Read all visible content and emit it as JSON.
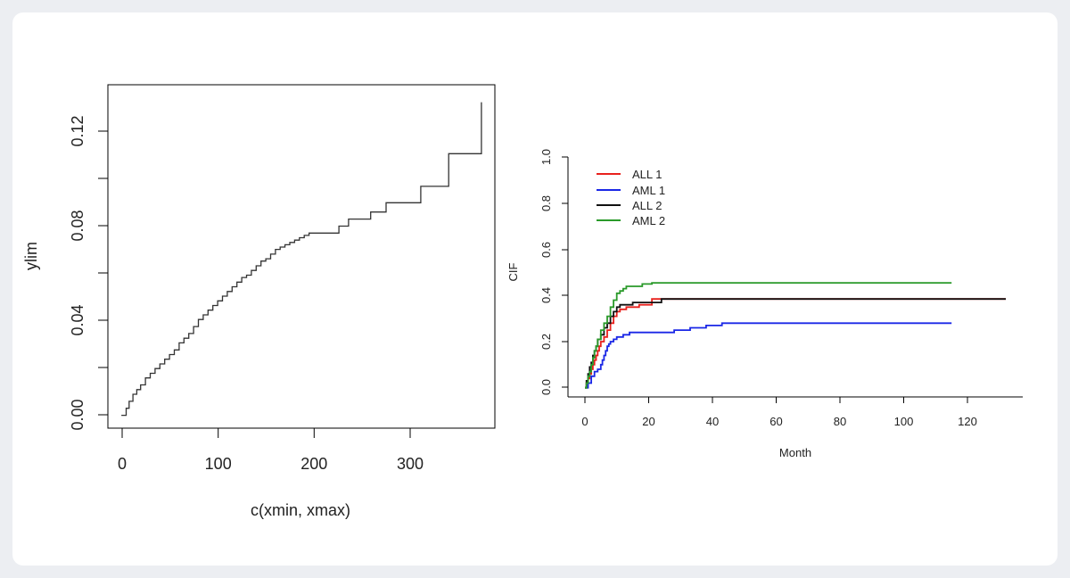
{
  "chart_data": [
    {
      "type": "line",
      "step": true,
      "title": "",
      "xlabel": "c(xmin, xmax)",
      "ylabel": "ylim",
      "xlim": [
        -14,
        388
      ],
      "ylim": [
        -0.0055,
        0.1415
      ],
      "x_ticks": [
        0,
        100,
        200,
        300
      ],
      "y_ticks": [
        0.0,
        0.04,
        0.08,
        0.12
      ],
      "y_tick_labels": [
        "0.00",
        "0.04",
        "0.08",
        "0.12"
      ],
      "y_minor_ticks": [
        0.02,
        0.06,
        0.1
      ],
      "series": [
        {
          "color": "#333333",
          "x": [
            0,
            5,
            8,
            12,
            16,
            20,
            25,
            30,
            35,
            40,
            45,
            50,
            55,
            60,
            65,
            70,
            75,
            80,
            85,
            90,
            95,
            100,
            105,
            110,
            115,
            120,
            125,
            130,
            135,
            140,
            145,
            150,
            155,
            160,
            165,
            170,
            175,
            180,
            185,
            190,
            195,
            200,
            226,
            236,
            259,
            275,
            311,
            340,
            374
          ],
          "y": [
            0.0,
            0.003,
            0.006,
            0.009,
            0.011,
            0.013,
            0.016,
            0.018,
            0.02,
            0.022,
            0.024,
            0.026,
            0.028,
            0.031,
            0.033,
            0.035,
            0.038,
            0.041,
            0.043,
            0.045,
            0.047,
            0.049,
            0.051,
            0.053,
            0.055,
            0.057,
            0.059,
            0.06,
            0.062,
            0.064,
            0.066,
            0.067,
            0.069,
            0.071,
            0.072,
            0.073,
            0.074,
            0.075,
            0.076,
            0.077,
            0.078,
            0.078,
            0.081,
            0.084,
            0.087,
            0.091,
            0.098,
            0.112,
            0.134
          ]
        }
      ]
    },
    {
      "type": "line",
      "step": true,
      "title": "",
      "xlabel": "Month",
      "ylabel": "CIF",
      "xlim": [
        -5.3,
        137.3
      ],
      "ylim": [
        -0.04,
        1.04
      ],
      "x_ticks": [
        0,
        20,
        40,
        60,
        80,
        100,
        120
      ],
      "y_ticks": [
        0.0,
        0.2,
        0.4,
        0.6,
        0.8,
        1.0
      ],
      "y_tick_labels": [
        "0.0",
        "0.2",
        "0.4",
        "0.6",
        "0.8",
        "1.0"
      ],
      "legend_position": "top-left",
      "series": [
        {
          "name": "ALL 1",
          "color": "#e8211d",
          "x": [
            0,
            0.5,
            1,
            1.5,
            2,
            2.5,
            3,
            3.5,
            4,
            4.5,
            5,
            6,
            7,
            8,
            9,
            10,
            11,
            13,
            17,
            21,
            25,
            132
          ],
          "y": [
            0.0,
            0.02,
            0.04,
            0.06,
            0.08,
            0.1,
            0.12,
            0.14,
            0.16,
            0.18,
            0.2,
            0.22,
            0.25,
            0.28,
            0.31,
            0.33,
            0.34,
            0.35,
            0.36,
            0.385,
            0.385,
            0.385
          ]
        },
        {
          "name": "AML 1",
          "color": "#1a27e6",
          "x": [
            0,
            1,
            2,
            3,
            4,
            5,
            5.5,
            6,
            6.5,
            7,
            7.5,
            8,
            9,
            10,
            12,
            14,
            18,
            22,
            24,
            28,
            33,
            38,
            43,
            115
          ],
          "y": [
            0.0,
            0.02,
            0.05,
            0.07,
            0.08,
            0.1,
            0.12,
            0.14,
            0.16,
            0.18,
            0.19,
            0.2,
            0.21,
            0.22,
            0.23,
            0.24,
            0.24,
            0.24,
            0.24,
            0.25,
            0.26,
            0.27,
            0.28,
            0.28
          ]
        },
        {
          "name": "ALL 2",
          "color": "#111111",
          "x": [
            0,
            0.5,
            1,
            1.5,
            2,
            2.5,
            3,
            3.5,
            4,
            5,
            6,
            7,
            8,
            9,
            10,
            11,
            15,
            20,
            24,
            132
          ],
          "y": [
            0.0,
            0.03,
            0.06,
            0.09,
            0.11,
            0.14,
            0.16,
            0.18,
            0.21,
            0.23,
            0.26,
            0.28,
            0.31,
            0.33,
            0.35,
            0.36,
            0.37,
            0.37,
            0.385,
            0.385
          ]
        },
        {
          "name": "AML 2",
          "color": "#2a9a2a",
          "x": [
            0,
            0.5,
            1,
            1.5,
            2,
            2.5,
            3,
            3.5,
            4,
            5,
            6,
            7,
            8,
            9,
            10,
            11,
            12,
            13,
            15,
            18,
            21,
            115
          ],
          "y": [
            0.0,
            0.02,
            0.05,
            0.07,
            0.1,
            0.13,
            0.16,
            0.18,
            0.21,
            0.25,
            0.28,
            0.31,
            0.35,
            0.38,
            0.41,
            0.42,
            0.43,
            0.44,
            0.44,
            0.45,
            0.455,
            0.455
          ]
        }
      ]
    }
  ]
}
